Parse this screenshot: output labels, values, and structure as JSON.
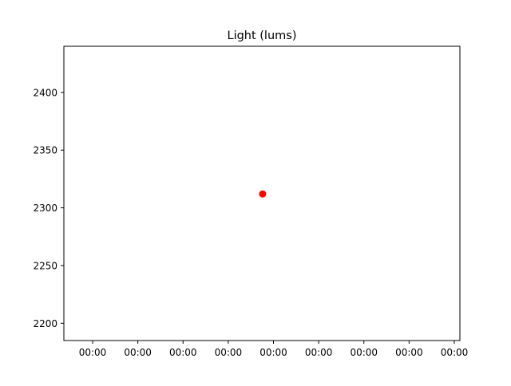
{
  "chart_data": {
    "type": "scatter",
    "title": "Light (lums)",
    "xlabel": "",
    "ylabel": "",
    "x_tick_labels": [
      "00:00",
      "00:00",
      "00:00",
      "00:00",
      "00:00",
      "00:00",
      "00:00",
      "00:00",
      "00:00"
    ],
    "y_ticks": [
      2200,
      2250,
      2300,
      2350,
      2400
    ],
    "ylim": [
      2185,
      2440
    ],
    "grid": false,
    "legend": "none",
    "series": [
      {
        "color": "#ff0000",
        "marker": "circle",
        "points": [
          {
            "x": "00:00",
            "y": 2312
          }
        ]
      }
    ]
  }
}
